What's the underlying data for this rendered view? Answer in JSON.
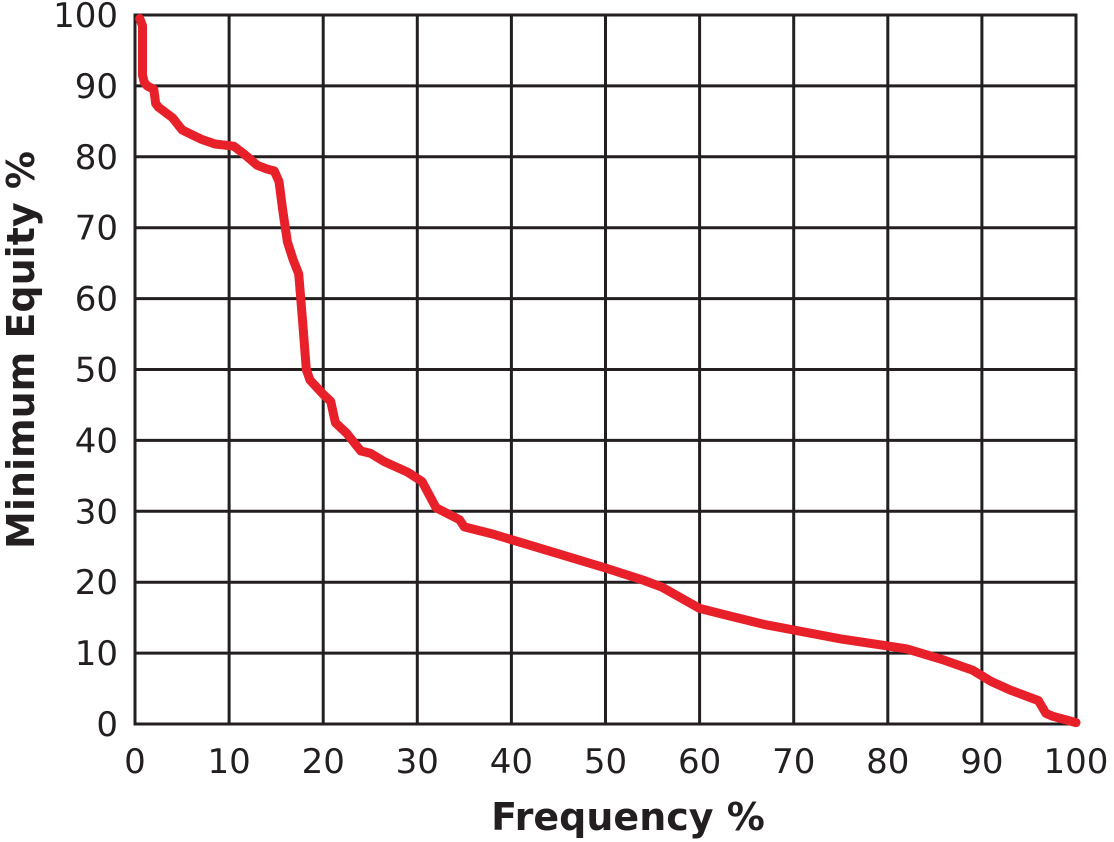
{
  "chart_data": {
    "type": "line",
    "title": "",
    "xlabel": "Frequency %",
    "ylabel": "Minimum Equity %",
    "xlim": [
      0,
      100
    ],
    "ylim": [
      0,
      100
    ],
    "xticks": [
      "0",
      "10",
      "20",
      "30",
      "40",
      "50",
      "60",
      "70",
      "80",
      "90",
      "100"
    ],
    "yticks": [
      "0",
      "10",
      "20",
      "30",
      "40",
      "50",
      "60",
      "70",
      "80",
      "90",
      "100"
    ],
    "grid": true,
    "legend": "none",
    "series": [
      {
        "color": "#e8202a",
        "x": [
          0.5,
          0.8,
          0.8,
          0.8,
          1.0,
          1.3,
          2.0,
          2.2,
          2.5,
          4.0,
          5.0,
          7.0,
          8.5,
          10.5,
          11.5,
          13.0,
          14.0,
          14.8,
          15.3,
          15.7,
          16.2,
          16.8,
          17.4,
          17.8,
          18.2,
          18.6,
          20.0,
          20.8,
          21.3,
          22.5,
          24.0,
          25.0,
          26.5,
          29.0,
          30.5,
          32.0,
          34.5,
          35.0,
          38.0,
          45.0,
          50.0,
          54.0,
          56.0,
          58.0,
          60.0,
          63.0,
          67.0,
          75.0,
          82.0,
          86.0,
          89.0,
          91.0,
          93.0,
          96.0,
          96.8,
          97.5,
          100.0
        ],
        "y": [
          99.5,
          98.5,
          93.5,
          91.5,
          90.5,
          90.0,
          89.5,
          87.5,
          87.0,
          85.5,
          83.8,
          82.5,
          81.8,
          81.5,
          80.5,
          78.8,
          78.3,
          78.0,
          76.5,
          72.5,
          68.0,
          65.5,
          63.5,
          57.0,
          50.0,
          48.5,
          46.5,
          45.5,
          42.5,
          41.0,
          38.5,
          38.2,
          37.0,
          35.5,
          34.2,
          30.5,
          28.8,
          27.8,
          26.8,
          24.0,
          22.0,
          20.3,
          19.3,
          17.8,
          16.3,
          15.3,
          14.0,
          12.0,
          10.6,
          9.0,
          7.6,
          6.0,
          4.8,
          3.3,
          1.5,
          1.1,
          0.2
        ]
      }
    ]
  }
}
